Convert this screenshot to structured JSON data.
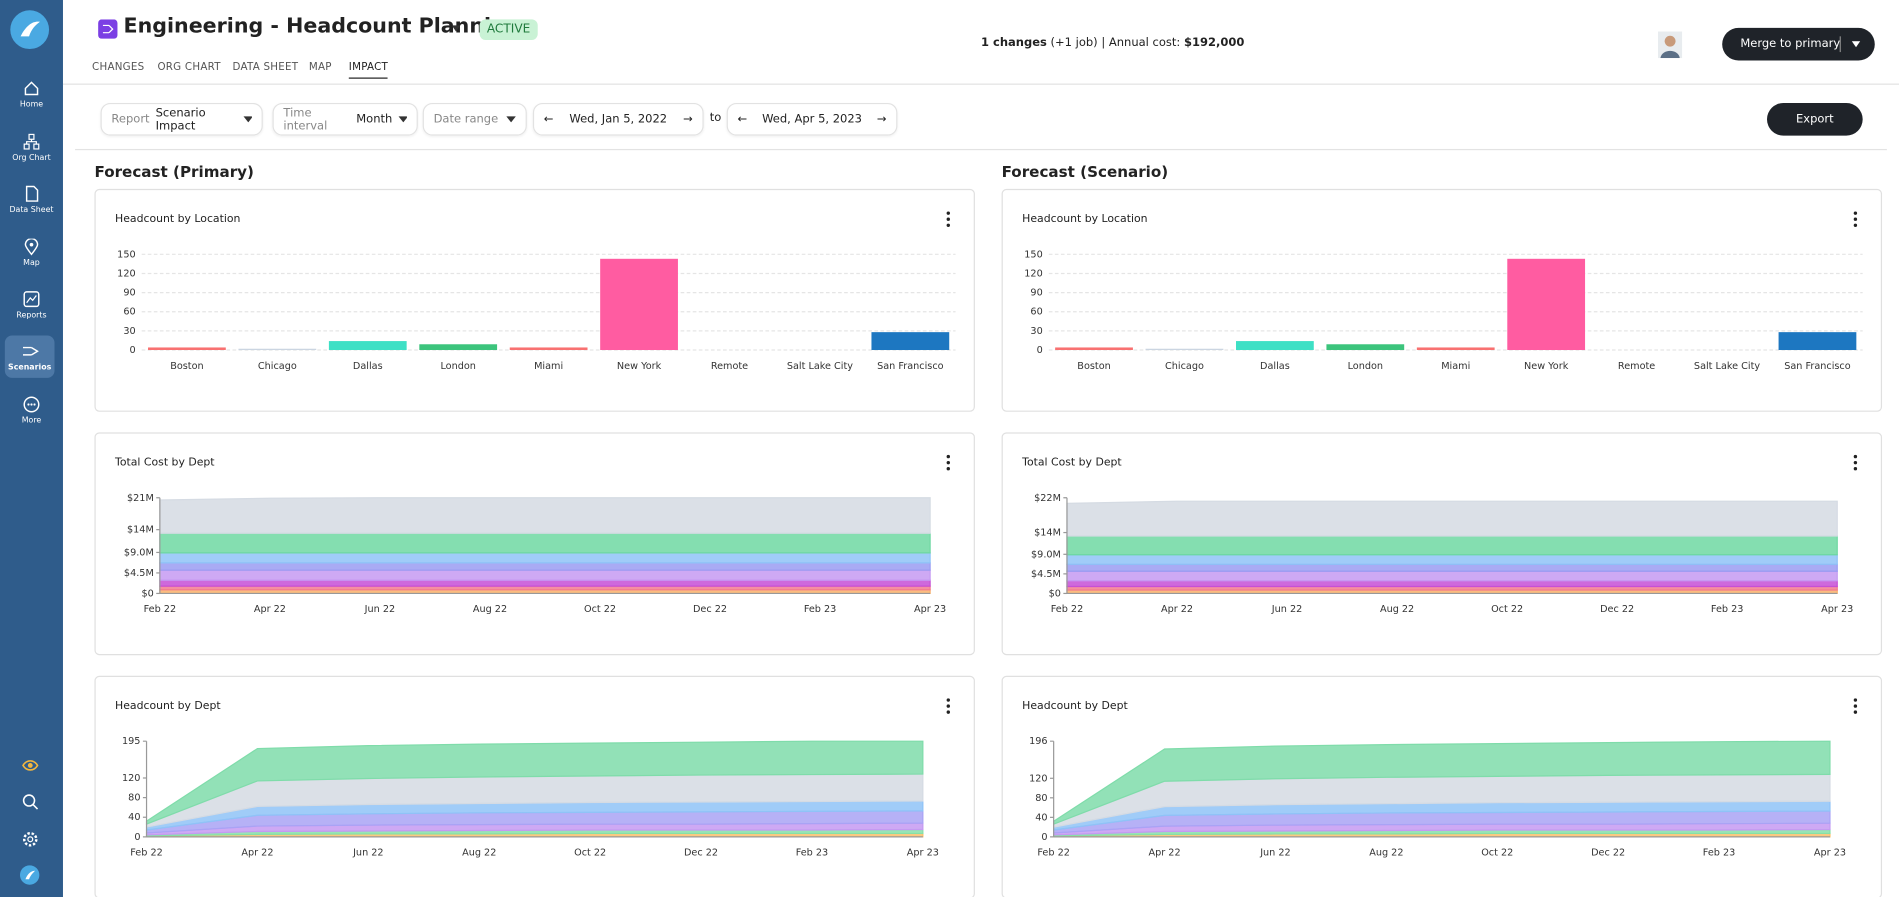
{
  "sidebar": {
    "items": [
      "Home",
      "Org Chart",
      "Data Sheet",
      "Map",
      "Reports",
      "Scenarios",
      "More"
    ]
  },
  "header": {
    "title": "Engineering - Headcount Planning",
    "status": "ACTIVE",
    "changes_count": "1 changes",
    "changes_detail": "(+1 job) | Annual cost:",
    "cost": "$192,000",
    "merge_button": "Merge to primary"
  },
  "tabs": [
    "CHANGES",
    "ORG CHART",
    "DATA SHEET",
    "MAP",
    "IMPACT"
  ],
  "toolbar": {
    "report_label": "Report",
    "report_value": "Scenario Impact",
    "interval_label": "Time interval",
    "interval_value": "Month",
    "date_range": "Date range",
    "start_date": "Wed, Jan 5, 2022",
    "to": "to",
    "end_date": "Wed, Apr 5, 2023",
    "export": "Export"
  },
  "panels": [
    {
      "title": "Forecast (Primary)",
      "charts": [
        {
          "type": "bar",
          "title": "Headcount by Location",
          "categories": [
            "Boston",
            "Chicago",
            "Dallas",
            "London",
            "Miami",
            "New York",
            "Remote",
            "Salt Lake City",
            "San Francisco"
          ],
          "values": [
            4,
            2,
            14,
            9,
            4,
            143,
            0,
            0,
            28
          ],
          "colors": [
            "#f87171",
            "#cbd5e1",
            "#3ee0c5",
            "#3cc47c",
            "#f87171",
            "#ff5ca1",
            "#a78bfa",
            "#fbbf24",
            "#1d77c1"
          ],
          "ylim": [
            0,
            150
          ],
          "yticks": [
            0,
            30,
            60,
            90,
            120,
            150
          ],
          "grid": true
        },
        {
          "type": "area",
          "title": "Total Cost by Dept",
          "categories": [
            "Feb 22",
            "Apr 22",
            "Jun 22",
            "Aug 22",
            "Oct 22",
            "Dec 22",
            "Feb 23",
            "Apr 23"
          ],
          "ylim": [
            0,
            21000000
          ],
          "yticks": [
            {
              "value": 0,
              "label": "$0"
            },
            {
              "value": 4500000,
              "label": "$4.5M"
            },
            {
              "value": 9000000,
              "label": "$9.0M"
            },
            {
              "value": 14000000,
              "label": "$14M"
            },
            {
              "value": 21000000,
              "label": "$21M"
            }
          ],
          "grid": false,
          "series": [
            {
              "color": "#f9b26b",
              "values": [
                800000,
                800000,
                800000,
                800000,
                800000,
                800000,
                800000,
                800000
              ]
            },
            {
              "color": "#f37b8f",
              "values": [
                800000,
                800000,
                800000,
                800000,
                800000,
                800000,
                800000,
                800000
              ]
            },
            {
              "color": "#c64fd6",
              "values": [
                1300000,
                1300000,
                1300000,
                1300000,
                1300000,
                1300000,
                1300000,
                1300000
              ]
            },
            {
              "color": "#c59af2",
              "values": [
                2200000,
                2200000,
                2200000,
                2200000,
                2200000,
                2200000,
                2200000,
                2200000
              ]
            },
            {
              "color": "#9a9cf2",
              "values": [
                1600000,
                1600000,
                1600000,
                1600000,
                1600000,
                1600000,
                1600000,
                1600000
              ]
            },
            {
              "color": "#8fc3f7",
              "values": [
                2200000,
                2200000,
                2200000,
                2200000,
                2200000,
                2200000,
                2200000,
                2200000
              ]
            },
            {
              "color": "#6ed8a2",
              "values": [
                4300000,
                4300000,
                4300000,
                4300000,
                4300000,
                4300000,
                4300000,
                4300000
              ]
            },
            {
              "color": "#d5dbe3",
              "values": [
                7300000,
                7700000,
                7800000,
                7800000,
                7800000,
                7800000,
                7800000,
                7800000
              ]
            }
          ]
        },
        {
          "type": "area",
          "title": "Headcount by Dept",
          "categories": [
            "Feb 22",
            "Apr 22",
            "Jun 22",
            "Aug 22",
            "Oct 22",
            "Dec 22",
            "Feb 23",
            "Apr 23"
          ],
          "ylim": [
            0,
            195
          ],
          "yticks": [
            0,
            40,
            80,
            120,
            195
          ],
          "grid": false,
          "series": [
            {
              "color": "#f9c06b",
              "values": [
                2,
                5,
                6,
                6,
                7,
                7,
                7,
                7
              ]
            },
            {
              "color": "#86e0a8",
              "values": [
                2,
                6,
                6,
                7,
                7,
                7,
                7,
                8
              ]
            },
            {
              "color": "#c59af2",
              "values": [
                4,
                11,
                12,
                12,
                12,
                12,
                13,
                13
              ]
            },
            {
              "color": "#a9a3f5",
              "values": [
                6,
                22,
                23,
                24,
                24,
                25,
                25,
                25
              ]
            },
            {
              "color": "#8fc3f7",
              "values": [
                6,
                18,
                19,
                19,
                20,
                20,
                20,
                20
              ]
            },
            {
              "color": "#d5dbe3",
              "values": [
                6,
                52,
                53,
                54,
                54,
                55,
                55,
                55
              ]
            },
            {
              "color": "#7fdcaa",
              "values": [
                6,
                66,
                67,
                67,
                67,
                67,
                68,
                67
              ]
            }
          ]
        }
      ]
    },
    {
      "title": "Forecast (Scenario)",
      "charts": [
        {
          "type": "bar",
          "title": "Headcount by Location",
          "categories": [
            "Boston",
            "Chicago",
            "Dallas",
            "London",
            "Miami",
            "New York",
            "Remote",
            "Salt Lake City",
            "San Francisco"
          ],
          "values": [
            4,
            2,
            14,
            9,
            4,
            143,
            0,
            0,
            28
          ],
          "colors": [
            "#f87171",
            "#cbd5e1",
            "#3ee0c5",
            "#3cc47c",
            "#f87171",
            "#ff5ca1",
            "#a78bfa",
            "#fbbf24",
            "#1d77c1"
          ],
          "ylim": [
            0,
            150
          ],
          "yticks": [
            0,
            30,
            60,
            90,
            120,
            150
          ],
          "grid": true
        },
        {
          "type": "area",
          "title": "Total Cost by Dept",
          "categories": [
            "Feb 22",
            "Apr 22",
            "Jun 22",
            "Aug 22",
            "Oct 22",
            "Dec 22",
            "Feb 23",
            "Apr 23"
          ],
          "ylim": [
            0,
            22000000
          ],
          "yticks": [
            {
              "value": 0,
              "label": "$0"
            },
            {
              "value": 4500000,
              "label": "$4.5M"
            },
            {
              "value": 9000000,
              "label": "$9.0M"
            },
            {
              "value": 14000000,
              "label": "$14M"
            },
            {
              "value": 22000000,
              "label": "$22M"
            }
          ],
          "grid": false,
          "series": [
            {
              "color": "#f9b26b",
              "values": [
                800000,
                800000,
                800000,
                800000,
                800000,
                800000,
                800000,
                800000
              ]
            },
            {
              "color": "#f37b8f",
              "values": [
                800000,
                800000,
                800000,
                800000,
                800000,
                800000,
                800000,
                800000
              ]
            },
            {
              "color": "#c64fd6",
              "values": [
                1300000,
                1300000,
                1300000,
                1300000,
                1300000,
                1300000,
                1300000,
                1300000
              ]
            },
            {
              "color": "#c59af2",
              "values": [
                2200000,
                2200000,
                2200000,
                2200000,
                2200000,
                2200000,
                2200000,
                2200000
              ]
            },
            {
              "color": "#9a9cf2",
              "values": [
                1600000,
                1600000,
                1600000,
                1600000,
                1600000,
                1600000,
                1600000,
                1600000
              ]
            },
            {
              "color": "#8fc3f7",
              "values": [
                2200000,
                2200000,
                2200000,
                2200000,
                2200000,
                2200000,
                2200000,
                2200000
              ]
            },
            {
              "color": "#6ed8a2",
              "values": [
                4300000,
                4300000,
                4300000,
                4300000,
                4300000,
                4300000,
                4300000,
                4300000
              ]
            },
            {
              "color": "#d5dbe3",
              "values": [
                7500000,
                8000000,
                8000000,
                8000000,
                8000000,
                8000000,
                8000000,
                8000000
              ]
            }
          ]
        },
        {
          "type": "area",
          "title": "Headcount by Dept",
          "categories": [
            "Feb 22",
            "Apr 22",
            "Jun 22",
            "Aug 22",
            "Oct 22",
            "Dec 22",
            "Feb 23",
            "Apr 23"
          ],
          "ylim": [
            0,
            196
          ],
          "yticks": [
            0,
            40,
            80,
            120,
            196
          ],
          "grid": false,
          "series": [
            {
              "color": "#f9c06b",
              "values": [
                2,
                5,
                6,
                6,
                7,
                7,
                7,
                7
              ]
            },
            {
              "color": "#86e0a8",
              "values": [
                2,
                6,
                6,
                7,
                7,
                7,
                7,
                8
              ]
            },
            {
              "color": "#c59af2",
              "values": [
                4,
                11,
                12,
                12,
                12,
                12,
                13,
                13
              ]
            },
            {
              "color": "#a9a3f5",
              "values": [
                6,
                22,
                23,
                24,
                24,
                25,
                25,
                25
              ]
            },
            {
              "color": "#8fc3f7",
              "values": [
                6,
                18,
                19,
                19,
                20,
                20,
                20,
                20
              ]
            },
            {
              "color": "#d5dbe3",
              "values": [
                6,
                52,
                53,
                54,
                54,
                55,
                55,
                55
              ]
            },
            {
              "color": "#7fdcaa",
              "values": [
                6,
                66,
                67,
                67,
                67,
                67,
                68,
                68
              ]
            }
          ]
        }
      ]
    }
  ]
}
